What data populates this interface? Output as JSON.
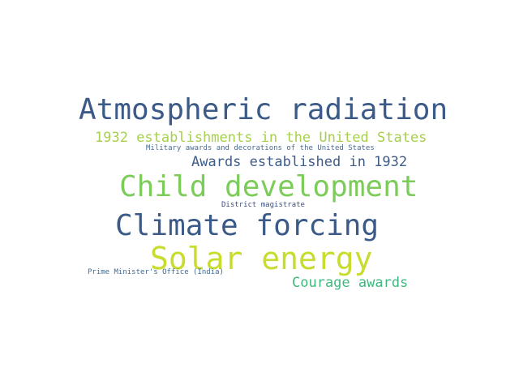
{
  "words": [
    {
      "text": "Atmospheric radiation",
      "color": "#3b5a87"
    },
    {
      "text": "1932 establishments in the United States",
      "color": "#a6d04b"
    },
    {
      "text": "Military awards and decorations of the United States",
      "color": "#4a6a94"
    },
    {
      "text": "Awards established in 1932",
      "color": "#3e5c8a"
    },
    {
      "text": "Child development",
      "color": "#7ccc5a"
    },
    {
      "text": "District magistrate",
      "color": "#3b4f80"
    },
    {
      "text": "Climate forcing",
      "color": "#3b5a87"
    },
    {
      "text": "Solar energy",
      "color": "#c8dc2e"
    },
    {
      "text": "Prime Minister's Office (India)",
      "color": "#3d6c95"
    },
    {
      "text": "Courage awards",
      "color": "#3fba7e"
    }
  ]
}
